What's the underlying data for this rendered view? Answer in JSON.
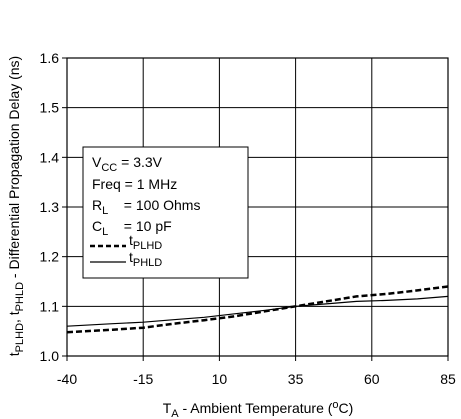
{
  "chart_data": {
    "type": "line",
    "ylabel": {
      "main": "t",
      "sub1": "PLHD",
      "sep": ", t",
      "sub2": "PHLD",
      "rest": " - Differential Propagation Delay (ns)"
    },
    "xlabel": {
      "main": "T",
      "sub": "A",
      "rest": " - Ambient Temperature (",
      "unit": "o",
      "end": "C)"
    },
    "xlim": [
      -40,
      85
    ],
    "ylim": [
      1.0,
      1.6
    ],
    "x_ticks": [
      -40,
      -15,
      10,
      35,
      60,
      85
    ],
    "x_tick_labels": [
      "-40",
      "-15",
      "10",
      "35",
      "60",
      "85"
    ],
    "y_ticks": [
      1.0,
      1.1,
      1.2,
      1.3,
      1.4,
      1.5,
      1.6
    ],
    "y_tick_labels": [
      "1.0",
      "1.1",
      "1.2",
      "1.3",
      "1.4",
      "1.5",
      "1.6"
    ],
    "grid": true,
    "conditions": [
      {
        "label": "V",
        "sub": "CC",
        "value": " = 3.3V"
      },
      {
        "label": "Freq",
        "sub": "",
        "value": " = 1 MHz"
      },
      {
        "label": "R",
        "sub": "L",
        "value": "    = 100 Ohms"
      },
      {
        "label": "C",
        "sub": "L",
        "value": "    = 10 pF"
      }
    ],
    "series": [
      {
        "name": "t",
        "name_sub": "PLHD",
        "style": "dashed",
        "color": "#000000",
        "x": [
          -40,
          -25,
          -15,
          -5,
          5,
          15,
          25,
          35,
          45,
          55,
          65,
          75,
          85
        ],
        "y": [
          1.048,
          1.053,
          1.057,
          1.065,
          1.072,
          1.08,
          1.09,
          1.1,
          1.11,
          1.12,
          1.125,
          1.132,
          1.14
        ]
      },
      {
        "name": "t",
        "name_sub": "PHLD",
        "style": "solid",
        "color": "#000000",
        "x": [
          -40,
          -25,
          -15,
          -5,
          5,
          15,
          25,
          35,
          45,
          55,
          65,
          75,
          85
        ],
        "y": [
          1.06,
          1.065,
          1.068,
          1.073,
          1.078,
          1.085,
          1.092,
          1.1,
          1.105,
          1.11,
          1.112,
          1.115,
          1.12
        ]
      }
    ]
  }
}
